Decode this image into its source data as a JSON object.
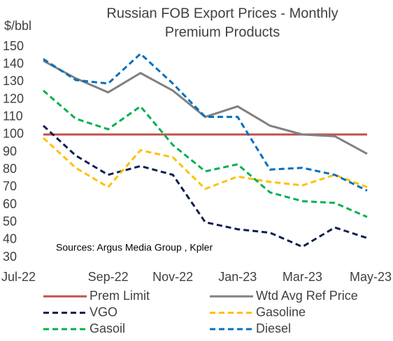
{
  "chart_data": {
    "type": "line",
    "title": [
      "Russian FOB Export Prices - Monthly",
      "Premium Products"
    ],
    "y_label": "$/bbl",
    "annotation": "Sources: Argus Media Group , Kpler",
    "categories": [
      "Jul-22",
      null,
      "Sep-22",
      null,
      "Nov-22",
      null,
      "Jan-23",
      null,
      "Mar-23",
      null,
      "May-23"
    ],
    "ylim": [
      30,
      150
    ],
    "yticks": [
      30,
      40,
      50,
      60,
      70,
      80,
      90,
      100,
      110,
      120,
      130,
      140,
      150
    ],
    "grid": false,
    "legend": "bottom",
    "series": [
      {
        "name": "Prem Limit",
        "color": "#c0504d",
        "dash": false,
        "values": [
          100,
          100,
          100,
          100,
          100,
          100,
          100,
          100,
          100,
          100,
          100
        ]
      },
      {
        "name": "Wtd Avg Ref Price",
        "color": "#808080",
        "dash": false,
        "values": [
          142,
          132,
          124,
          135,
          125,
          110,
          116,
          105,
          100,
          99,
          89
        ]
      },
      {
        "name": "VGO",
        "color": "#0e1f4f",
        "dash": true,
        "values": [
          105,
          88,
          77,
          82,
          77,
          50,
          46,
          44,
          36,
          47,
          41
        ]
      },
      {
        "name": "Gasoline",
        "color": "#ffc000",
        "dash": true,
        "values": [
          98,
          81,
          70,
          91,
          87,
          69,
          76,
          73,
          71,
          77,
          70
        ]
      },
      {
        "name": "Gasoil",
        "color": "#00b050",
        "dash": true,
        "values": [
          125,
          109,
          103,
          116,
          94,
          79,
          83,
          67,
          62,
          61,
          53
        ]
      },
      {
        "name": "Diesel",
        "color": "#0070c0",
        "dash": true,
        "values": [
          143,
          131,
          129,
          146,
          129,
          110,
          110,
          80,
          81,
          77,
          68
        ]
      }
    ]
  }
}
